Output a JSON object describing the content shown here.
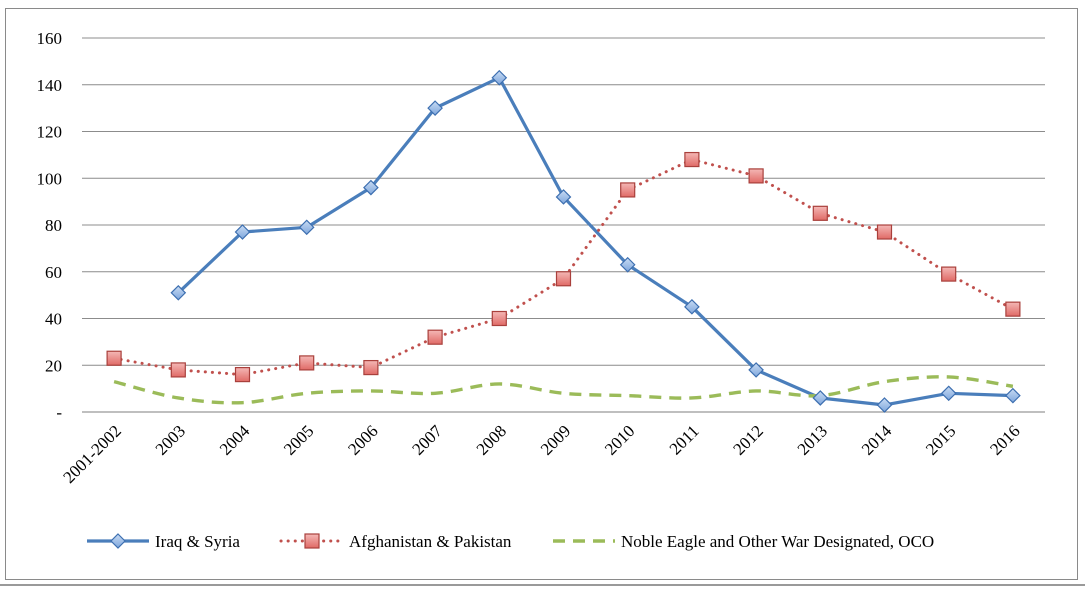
{
  "chart_data": {
    "type": "line",
    "categories": [
      "2001-2002",
      "2003",
      "2004",
      "2005",
      "2006",
      "2007",
      "2008",
      "2009",
      "2010",
      "2011",
      "2012",
      "2013",
      "2014",
      "2015",
      "2016"
    ],
    "y_ticks": [
      "-",
      "20",
      "40",
      "60",
      "80",
      "100",
      "120",
      "140",
      "160"
    ],
    "ylim": [
      0,
      160
    ],
    "grid": true,
    "legend_position": "bottom",
    "series": [
      {
        "name": "Iraq & Syria",
        "color": "#4a7ebb",
        "style": "solid",
        "marker": "diamond",
        "values": [
          null,
          51,
          77,
          79,
          96,
          130,
          143,
          92,
          63,
          45,
          18,
          6,
          3,
          8,
          7
        ]
      },
      {
        "name": "Afghanistan & Pakistan",
        "color": "#c0504d",
        "style": "dotted",
        "marker": "square",
        "values": [
          23,
          18,
          16,
          21,
          19,
          32,
          40,
          57,
          95,
          108,
          101,
          85,
          77,
          59,
          44
        ]
      },
      {
        "name": "Noble Eagle and Other War Designated, OCO",
        "color": "#9bbb59",
        "style": "dashed",
        "marker": "none",
        "values": [
          13,
          6,
          4,
          8,
          9,
          8,
          12,
          8,
          7,
          6,
          9,
          7,
          13,
          15,
          11
        ]
      }
    ]
  }
}
